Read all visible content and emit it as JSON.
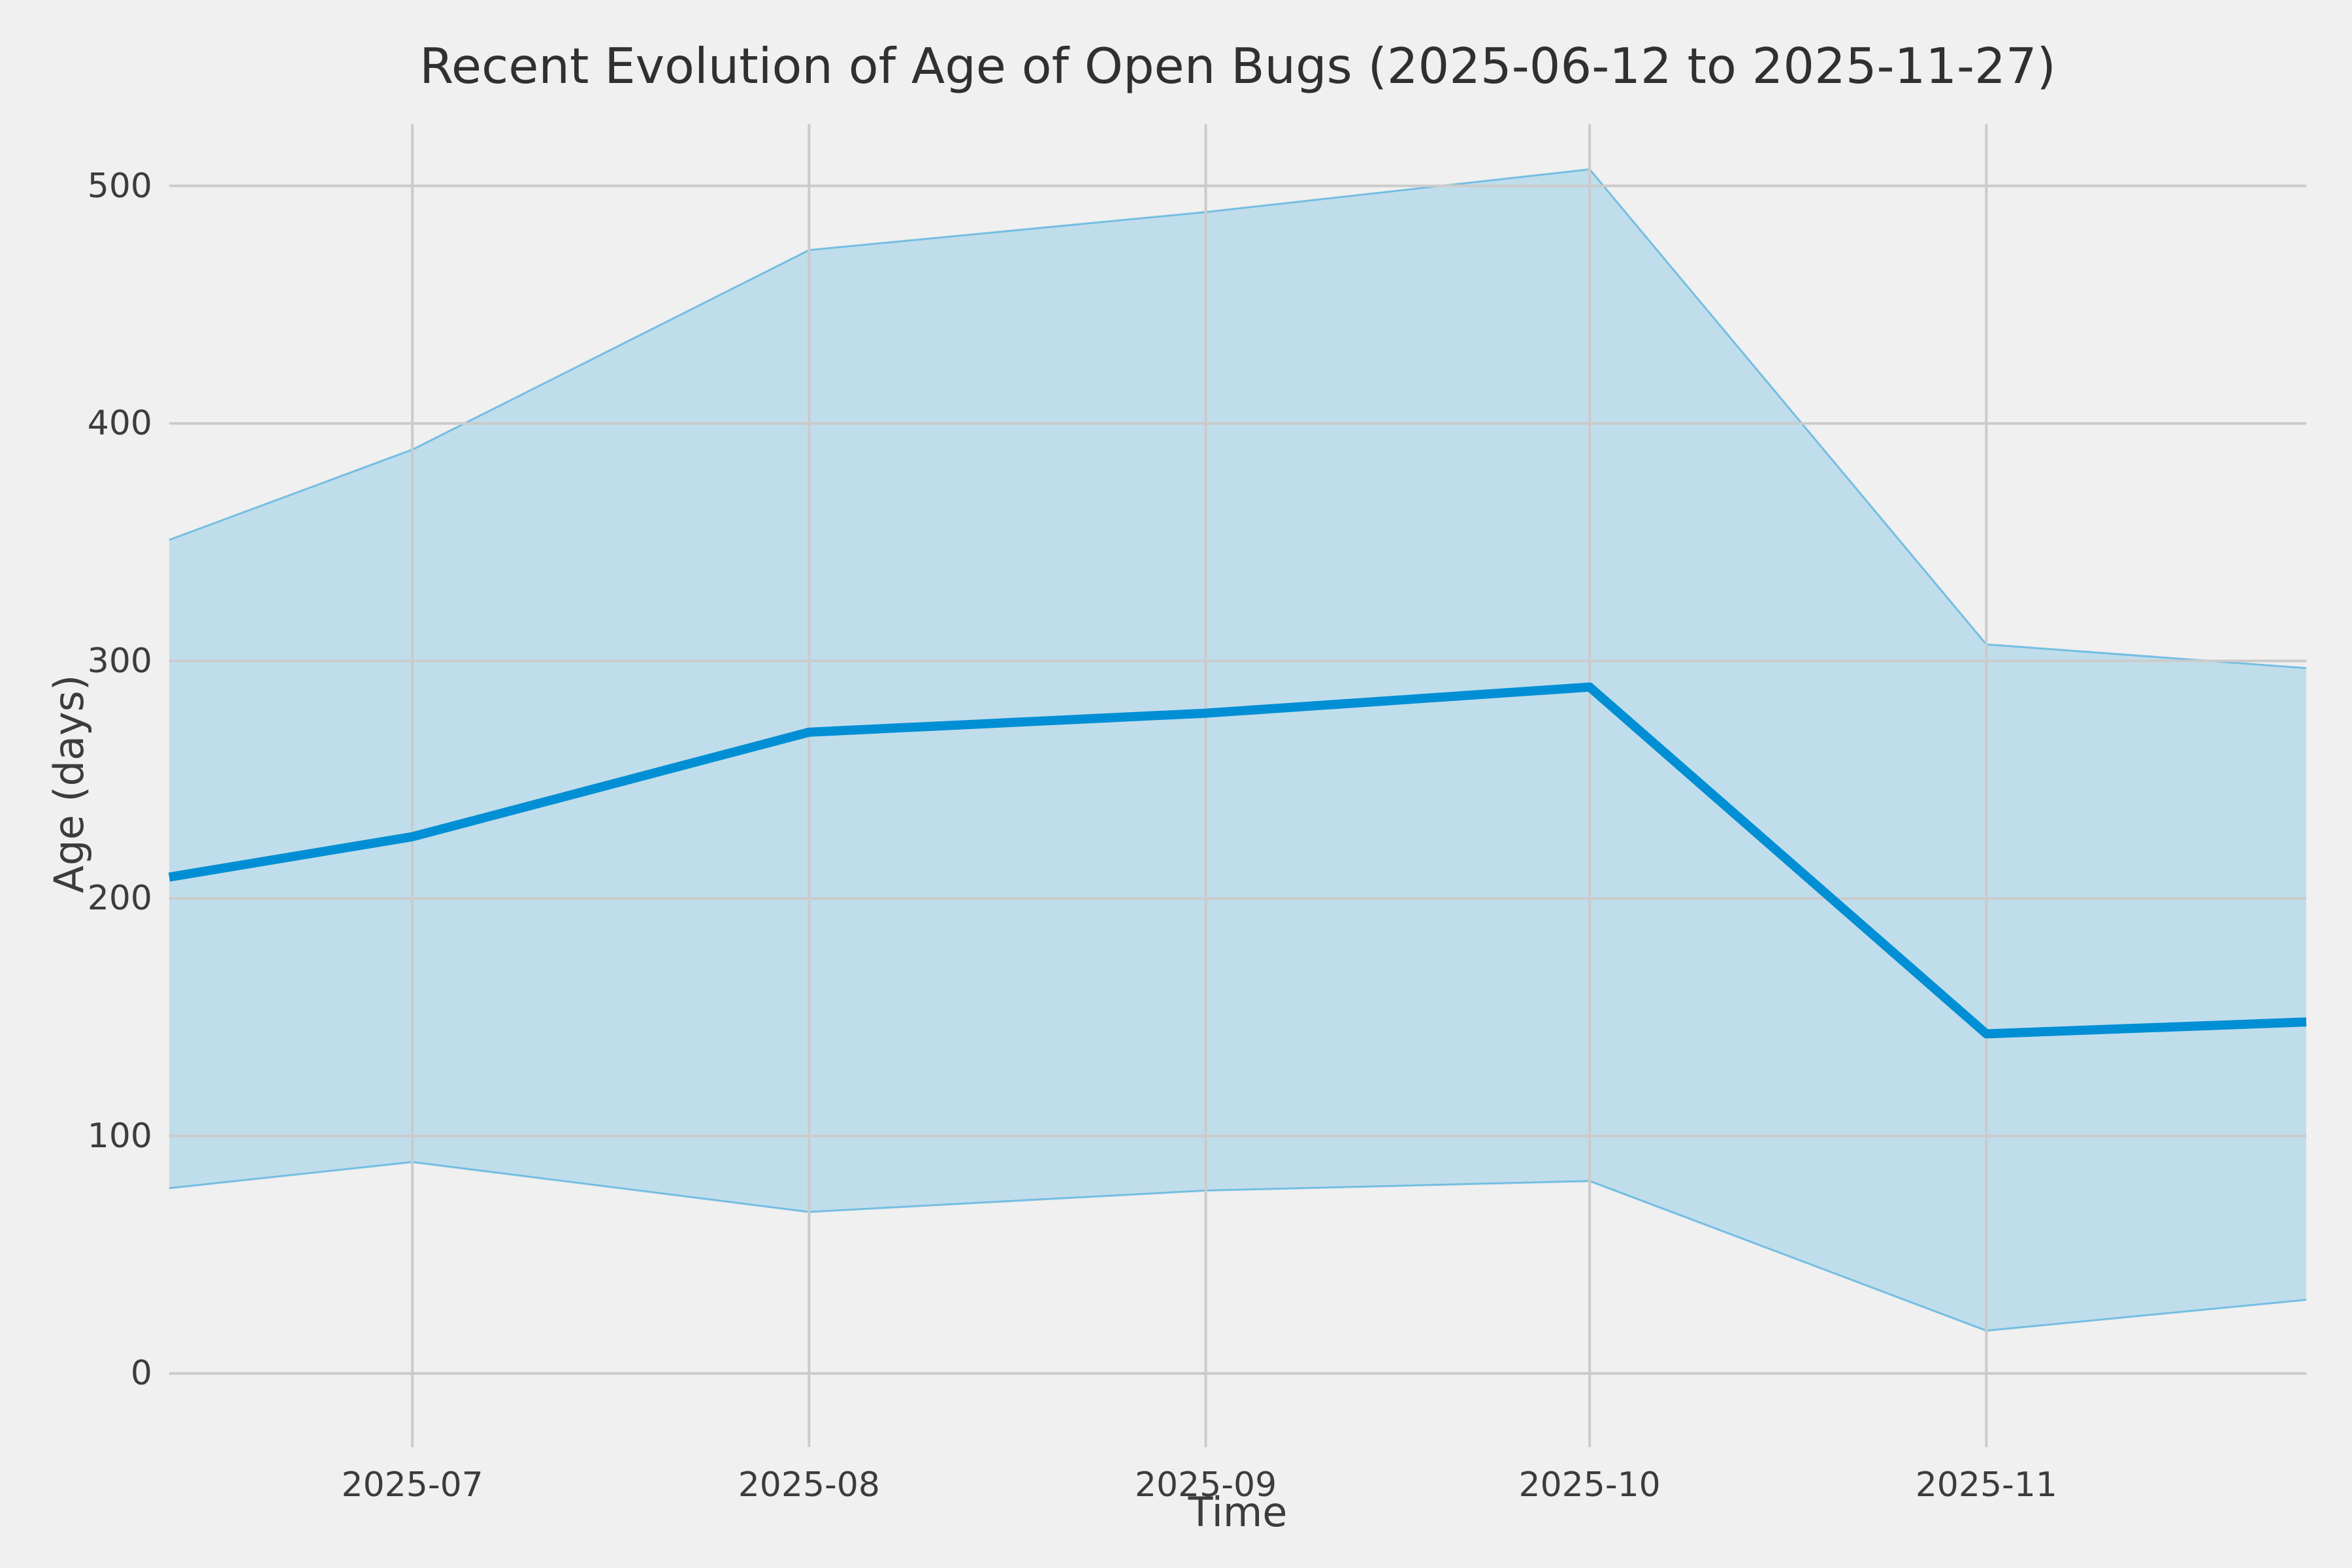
{
  "chart_data": {
    "type": "area",
    "title": "Recent Evolution of Age of Open Bugs (2025-06-12 to 2025-11-27)",
    "xlabel": "Time",
    "ylabel": "Age (days)",
    "x_dates": [
      "2025-06-12",
      "2025-07-01",
      "2025-08-01",
      "2025-09-01",
      "2025-10-01",
      "2025-11-01",
      "2025-11-27"
    ],
    "x_day_offsets": [
      0,
      19,
      50,
      81,
      111,
      142,
      167
    ],
    "x_tick_labels": [
      "2025-07",
      "2025-08",
      "2025-09",
      "2025-10",
      "2025-11"
    ],
    "x_tick_day_offsets": [
      19,
      50,
      81,
      111,
      142
    ],
    "y_ticks": [
      0,
      100,
      200,
      300,
      400,
      500
    ],
    "ylim": [
      -31,
      526
    ],
    "grid": true,
    "legend_position": "none",
    "series": [
      {
        "name": "median age (days)",
        "role": "line",
        "values": [
          209,
          226,
          270,
          278,
          289,
          143,
          148
        ]
      },
      {
        "name": "age range upper bound",
        "role": "band-upper",
        "values": [
          351,
          389,
          473,
          489,
          507,
          307,
          297
        ]
      },
      {
        "name": "age range lower bound",
        "role": "band-lower",
        "values": [
          78,
          89,
          68,
          77,
          81,
          18,
          31
        ]
      }
    ],
    "colors": {
      "line": "#008fd5",
      "band_fill": "rgba(0,143,213,0.2)",
      "band_edge": "rgba(0,143,213,0.45)",
      "grid": "#cbcbcb",
      "background": "#f0f0f0",
      "text": "#3c3c3c"
    }
  }
}
